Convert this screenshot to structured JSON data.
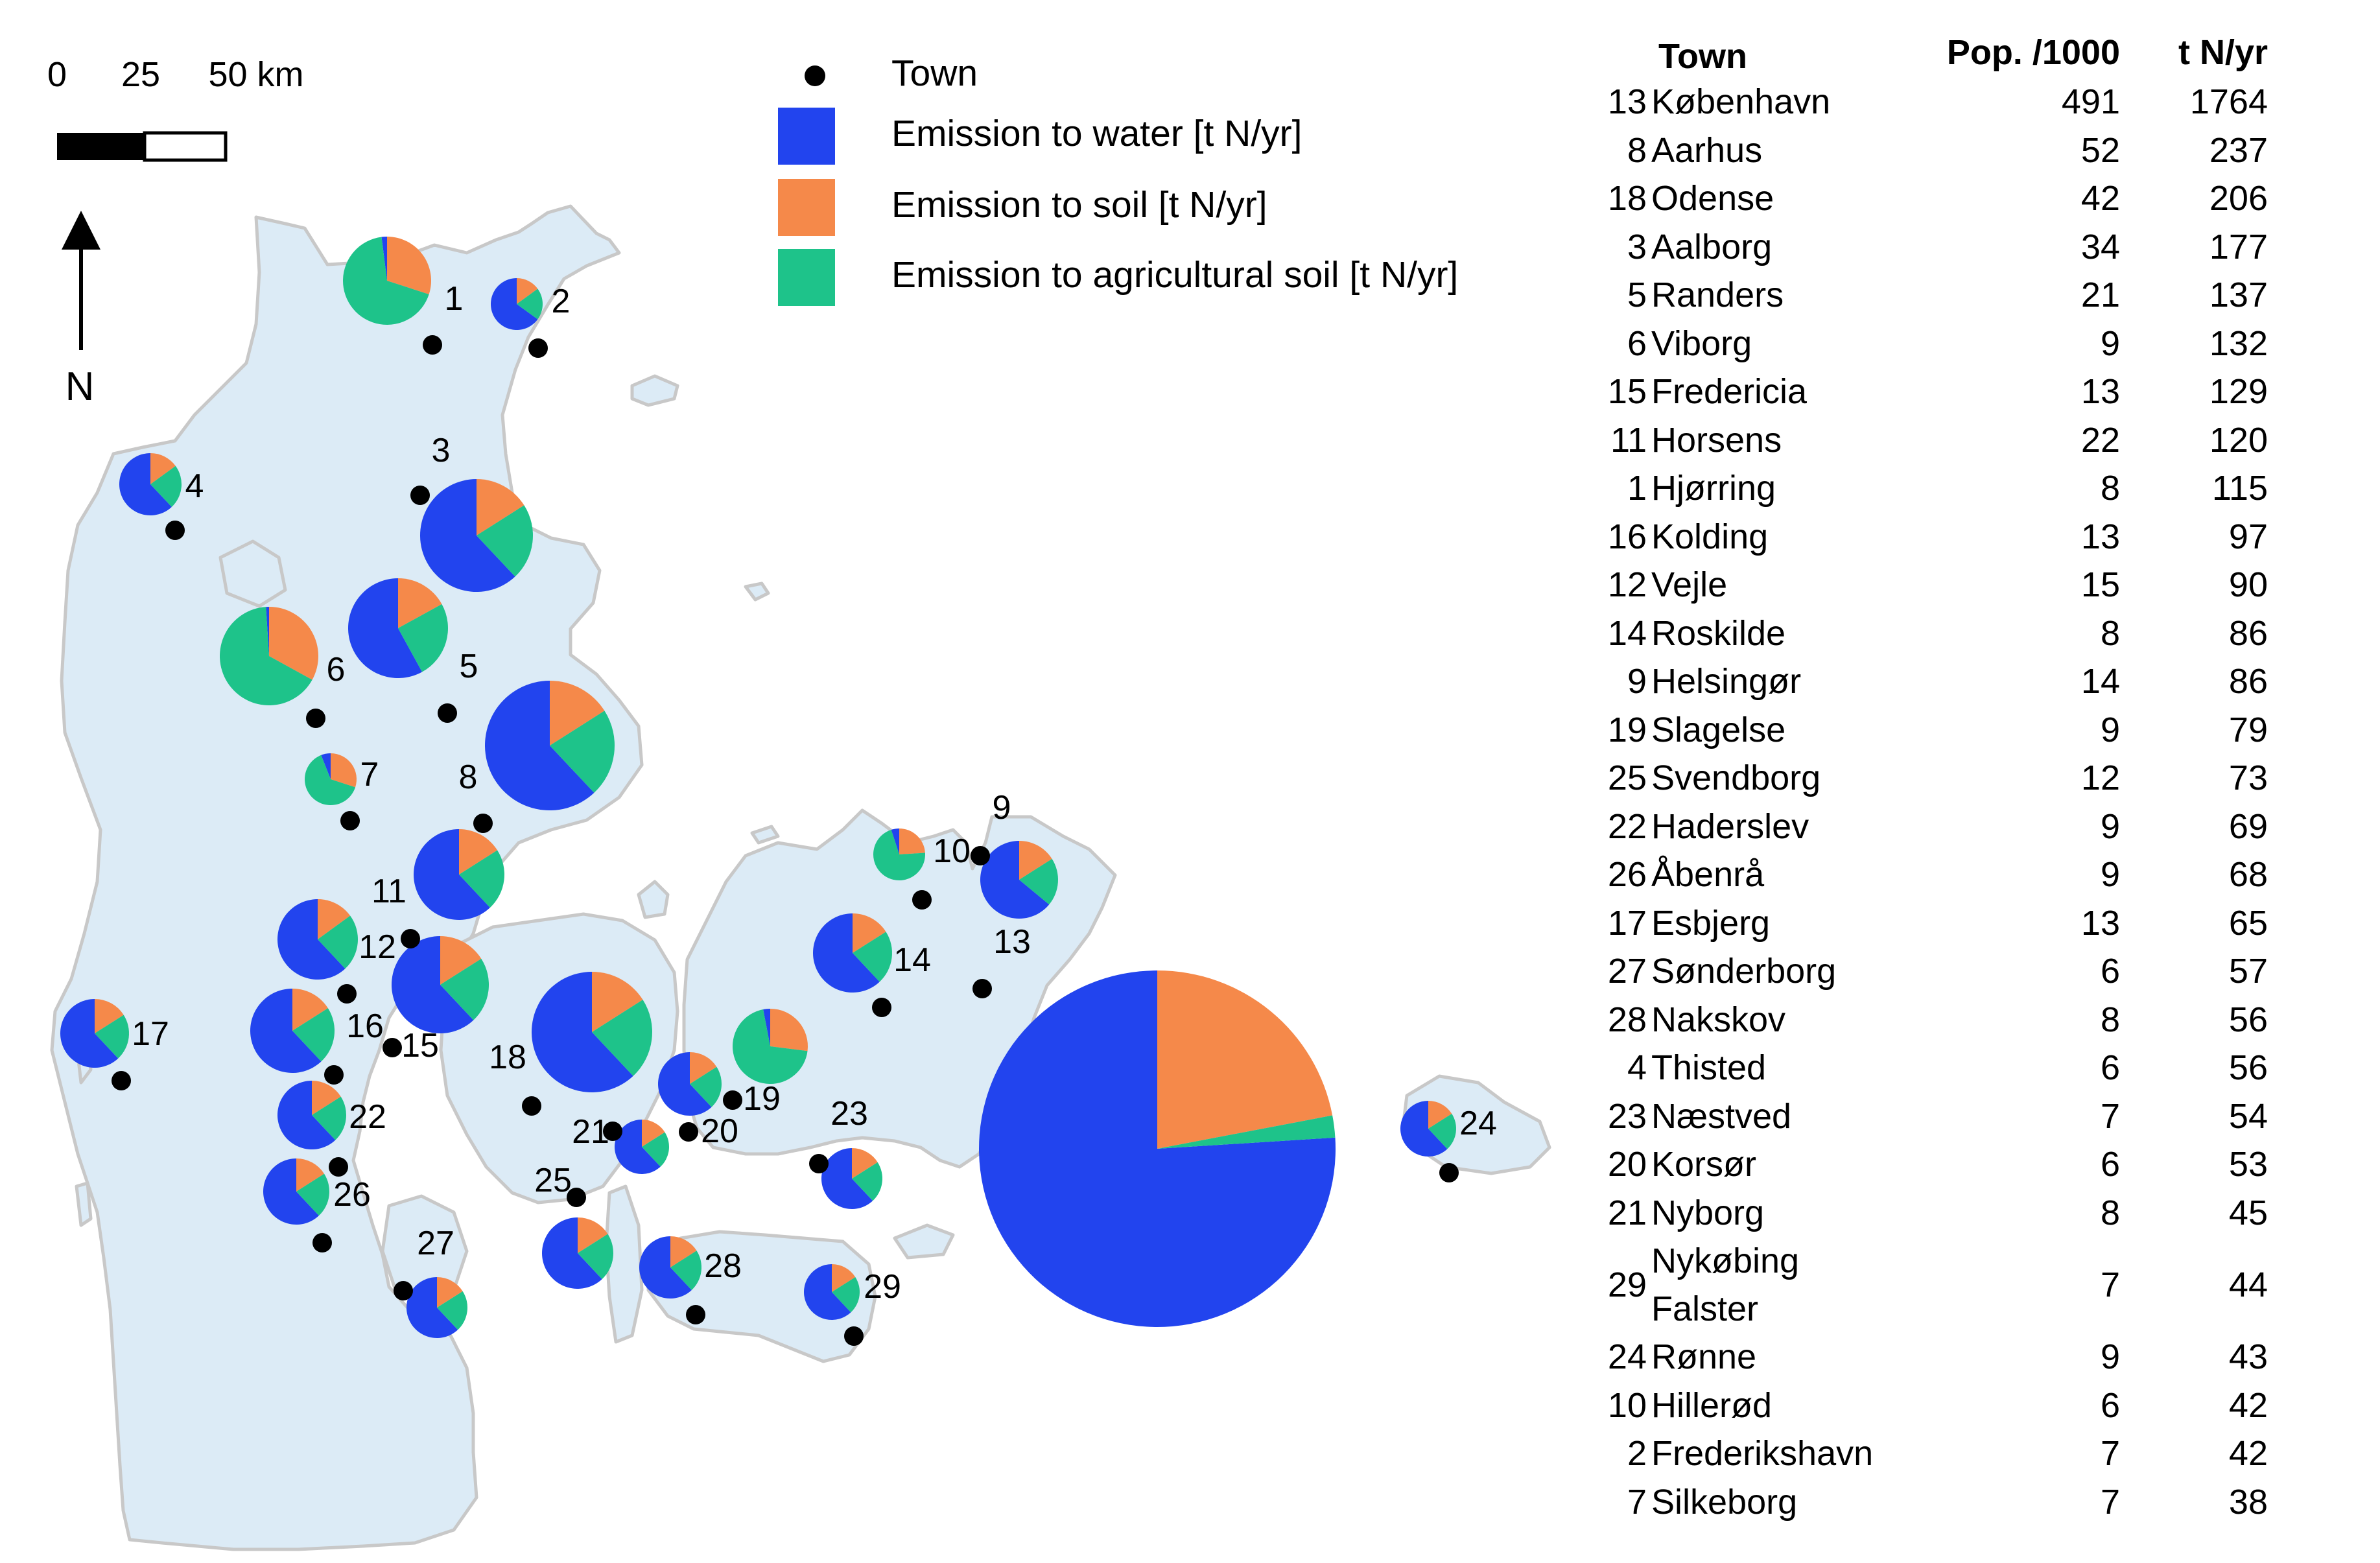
{
  "colors": {
    "water": "#2244ee",
    "soil": "#f5894a",
    "agricultural_soil": "#1ec38a",
    "land": "#dcebf6",
    "coast": "#c8c8c8",
    "town_marker": "#000000"
  },
  "scalebar": {
    "ticks": [
      "0",
      "25",
      "50 km"
    ]
  },
  "north_arrow": {
    "label": "N"
  },
  "legend": {
    "town": "Town",
    "water": "Emission to water [t N/yr]",
    "soil": "Emission to soil [t N/yr]",
    "agricultural_soil": "Emission to agricultural soil [t N/yr]"
  },
  "table": {
    "headers": {
      "town": "Town",
      "pop": "Pop. /1000",
      "tn": "t N/yr"
    },
    "rows": [
      {
        "rank": "13",
        "name": "København",
        "pop": "491",
        "tn": "1764"
      },
      {
        "rank": "8",
        "name": "Aarhus",
        "pop": "52",
        "tn": "237"
      },
      {
        "rank": "18",
        "name": "Odense",
        "pop": "42",
        "tn": "206"
      },
      {
        "rank": "3",
        "name": "Aalborg",
        "pop": "34",
        "tn": "177"
      },
      {
        "rank": "5",
        "name": "Randers",
        "pop": "21",
        "tn": "137"
      },
      {
        "rank": "6",
        "name": "Viborg",
        "pop": "9",
        "tn": "132"
      },
      {
        "rank": "15",
        "name": "Fredericia",
        "pop": "13",
        "tn": "129"
      },
      {
        "rank": "11",
        "name": "Horsens",
        "pop": "22",
        "tn": "120"
      },
      {
        "rank": "1",
        "name": "Hjørring",
        "pop": "8",
        "tn": "115"
      },
      {
        "rank": "16",
        "name": "Kolding",
        "pop": "13",
        "tn": "97"
      },
      {
        "rank": "12",
        "name": "Vejle",
        "pop": "15",
        "tn": "90"
      },
      {
        "rank": "14",
        "name": "Roskilde",
        "pop": "8",
        "tn": "86"
      },
      {
        "rank": "9",
        "name": "Helsingør",
        "pop": "14",
        "tn": "86"
      },
      {
        "rank": "19",
        "name": "Slagelse",
        "pop": "9",
        "tn": "79"
      },
      {
        "rank": "25",
        "name": "Svendborg",
        "pop": "12",
        "tn": "73"
      },
      {
        "rank": "22",
        "name": "Haderslev",
        "pop": "9",
        "tn": "69"
      },
      {
        "rank": "26",
        "name": "Åbenrå",
        "pop": "9",
        "tn": "68"
      },
      {
        "rank": "17",
        "name": "Esbjerg",
        "pop": "13",
        "tn": "65"
      },
      {
        "rank": "27",
        "name": "Sønderborg",
        "pop": "6",
        "tn": "57"
      },
      {
        "rank": "28",
        "name": "Nakskov",
        "pop": "8",
        "tn": "56"
      },
      {
        "rank": "4",
        "name": "Thisted",
        "pop": "6",
        "tn": "56"
      },
      {
        "rank": "23",
        "name": "Næstved",
        "pop": "7",
        "tn": "54"
      },
      {
        "rank": "20",
        "name": "Korsør",
        "pop": "6",
        "tn": "53"
      },
      {
        "rank": "21",
        "name": "Nyborg",
        "pop": "8",
        "tn": "45"
      },
      {
        "rank": "29",
        "name": "Nykøbing\nFalster",
        "pop": "7",
        "tn": "44"
      },
      {
        "rank": "24",
        "name": "Rønne",
        "pop": "9",
        "tn": "43"
      },
      {
        "rank": "10",
        "name": "Hillerød",
        "pop": "6",
        "tn": "42"
      },
      {
        "rank": "2",
        "name": "Frederikshavn",
        "pop": "7",
        "tn": "42"
      },
      {
        "rank": "7",
        "name": "Silkeborg",
        "pop": "7",
        "tn": "38"
      }
    ]
  },
  "map_points": [
    {
      "id": "1",
      "share": [
        0.02,
        0.3,
        0.68
      ]
    },
    {
      "id": "2",
      "share": [
        0.65,
        0.15,
        0.2
      ]
    },
    {
      "id": "3",
      "share": [
        0.62,
        0.16,
        0.22
      ]
    },
    {
      "id": "4",
      "share": [
        0.62,
        0.15,
        0.23
      ]
    },
    {
      "id": "5",
      "share": [
        0.58,
        0.17,
        0.25
      ]
    },
    {
      "id": "6",
      "share": [
        0.01,
        0.33,
        0.66
      ]
    },
    {
      "id": "7",
      "share": [
        0.06,
        0.3,
        0.64
      ]
    },
    {
      "id": "8",
      "share": [
        0.62,
        0.16,
        0.22
      ]
    },
    {
      "id": "9",
      "share": [
        0.64,
        0.16,
        0.2
      ]
    },
    {
      "id": "10",
      "share": [
        0.05,
        0.24,
        0.71
      ]
    },
    {
      "id": "11",
      "share": [
        0.62,
        0.16,
        0.22
      ]
    },
    {
      "id": "12",
      "share": [
        0.62,
        0.15,
        0.23
      ]
    },
    {
      "id": "13",
      "share": [
        0.76,
        0.22,
        0.02
      ]
    },
    {
      "id": "14",
      "share": [
        0.62,
        0.16,
        0.22
      ]
    },
    {
      "id": "15",
      "share": [
        0.62,
        0.16,
        0.22
      ]
    },
    {
      "id": "16",
      "share": [
        0.62,
        0.16,
        0.22
      ]
    },
    {
      "id": "17",
      "share": [
        0.62,
        0.16,
        0.22
      ]
    },
    {
      "id": "18",
      "share": [
        0.62,
        0.16,
        0.22
      ]
    },
    {
      "id": "19",
      "share": [
        0.03,
        0.27,
        0.7
      ]
    },
    {
      "id": "20",
      "share": [
        0.62,
        0.16,
        0.22
      ]
    },
    {
      "id": "21",
      "share": [
        0.62,
        0.16,
        0.22
      ]
    },
    {
      "id": "22",
      "share": [
        0.62,
        0.16,
        0.22
      ]
    },
    {
      "id": "23",
      "share": [
        0.62,
        0.16,
        0.22
      ]
    },
    {
      "id": "24",
      "share": [
        0.62,
        0.16,
        0.22
      ]
    },
    {
      "id": "25",
      "share": [
        0.62,
        0.16,
        0.22
      ]
    },
    {
      "id": "26",
      "share": [
        0.62,
        0.16,
        0.22
      ]
    },
    {
      "id": "27",
      "share": [
        0.62,
        0.16,
        0.22
      ]
    },
    {
      "id": "28",
      "share": [
        0.62,
        0.16,
        0.22
      ]
    },
    {
      "id": "29",
      "share": [
        0.62,
        0.16,
        0.22
      ]
    }
  ]
}
